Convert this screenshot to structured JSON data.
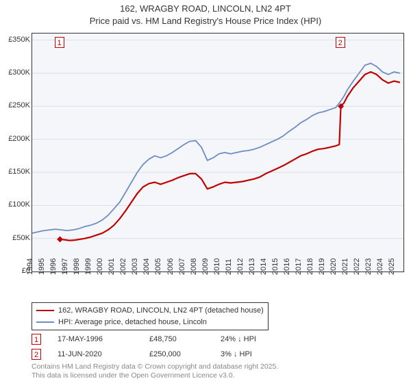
{
  "title_line1": "162, WRAGBY ROAD, LINCOLN, LN2 4PT",
  "title_line2": "Price paid vs. HM Land Registry's House Price Index (HPI)",
  "chart": {
    "type": "line",
    "background_color": "#f4f6fa",
    "grid_color": "#dcdfe6",
    "axis_color": "#333333",
    "xlim": [
      1994,
      2025.8
    ],
    "ylim": [
      0,
      360000
    ],
    "y_ticks": [
      0,
      50000,
      100000,
      150000,
      200000,
      250000,
      300000,
      350000
    ],
    "y_tick_labels": [
      "£0",
      "£50K",
      "£100K",
      "£150K",
      "£200K",
      "£250K",
      "£300K",
      "£350K"
    ],
    "x_ticks": [
      1994,
      1995,
      1996,
      1997,
      1998,
      1999,
      2000,
      2001,
      2002,
      2003,
      2004,
      2005,
      2006,
      2007,
      2008,
      2009,
      2010,
      2011,
      2012,
      2013,
      2014,
      2015,
      2016,
      2017,
      2018,
      2019,
      2020,
      2021,
      2022,
      2023,
      2024,
      2025
    ],
    "x_tick_labels": [
      "1994",
      "1995",
      "1996",
      "1997",
      "1998",
      "1999",
      "2000",
      "2001",
      "2002",
      "2003",
      "2004",
      "2005",
      "2006",
      "2007",
      "2008",
      "2009",
      "2010",
      "2011",
      "2012",
      "2013",
      "2014",
      "2015",
      "2016",
      "2017",
      "2018",
      "2019",
      "2020",
      "2021",
      "2022",
      "2023",
      "2024",
      "2025"
    ],
    "series": [
      {
        "name": "price_paid",
        "color": "#c00000",
        "line_width": 2.2,
        "points": [
          [
            1996.38,
            48750
          ],
          [
            1996.8,
            48000
          ],
          [
            1997.2,
            47000
          ],
          [
            1997.6,
            47500
          ],
          [
            1998.0,
            48500
          ],
          [
            1998.5,
            50000
          ],
          [
            1999.0,
            52000
          ],
          [
            1999.5,
            55000
          ],
          [
            2000.0,
            58000
          ],
          [
            2000.5,
            63000
          ],
          [
            2001.0,
            70000
          ],
          [
            2001.5,
            80000
          ],
          [
            2002.0,
            92000
          ],
          [
            2002.5,
            105000
          ],
          [
            2003.0,
            118000
          ],
          [
            2003.5,
            128000
          ],
          [
            2004.0,
            133000
          ],
          [
            2004.5,
            135000
          ],
          [
            2005.0,
            132000
          ],
          [
            2005.5,
            135000
          ],
          [
            2006.0,
            138000
          ],
          [
            2006.5,
            142000
          ],
          [
            2007.0,
            145000
          ],
          [
            2007.5,
            148000
          ],
          [
            2008.0,
            148000
          ],
          [
            2008.5,
            140000
          ],
          [
            2009.0,
            125000
          ],
          [
            2009.5,
            128000
          ],
          [
            2010.0,
            132000
          ],
          [
            2010.5,
            135000
          ],
          [
            2011.0,
            134000
          ],
          [
            2011.5,
            135000
          ],
          [
            2012.0,
            136000
          ],
          [
            2012.5,
            138000
          ],
          [
            2013.0,
            140000
          ],
          [
            2013.5,
            143000
          ],
          [
            2014.0,
            148000
          ],
          [
            2014.5,
            152000
          ],
          [
            2015.0,
            156000
          ],
          [
            2015.5,
            160000
          ],
          [
            2016.0,
            165000
          ],
          [
            2016.5,
            170000
          ],
          [
            2017.0,
            175000
          ],
          [
            2017.5,
            178000
          ],
          [
            2018.0,
            182000
          ],
          [
            2018.5,
            185000
          ],
          [
            2019.0,
            186000
          ],
          [
            2019.5,
            188000
          ],
          [
            2020.0,
            190000
          ],
          [
            2020.3,
            192000
          ],
          [
            2020.44,
            250000
          ],
          [
            2020.7,
            255000
          ],
          [
            2021.0,
            265000
          ],
          [
            2021.5,
            278000
          ],
          [
            2022.0,
            288000
          ],
          [
            2022.5,
            298000
          ],
          [
            2023.0,
            302000
          ],
          [
            2023.5,
            298000
          ],
          [
            2024.0,
            290000
          ],
          [
            2024.5,
            285000
          ],
          [
            2025.0,
            288000
          ],
          [
            2025.5,
            286000
          ]
        ]
      },
      {
        "name": "hpi",
        "color": "#6c8cc4",
        "line_width": 1.8,
        "points": [
          [
            1994.0,
            58000
          ],
          [
            1994.5,
            60000
          ],
          [
            1995.0,
            62000
          ],
          [
            1995.5,
            63000
          ],
          [
            1996.0,
            64000
          ],
          [
            1996.5,
            63000
          ],
          [
            1997.0,
            62000
          ],
          [
            1997.5,
            63000
          ],
          [
            1998.0,
            65000
          ],
          [
            1998.5,
            68000
          ],
          [
            1999.0,
            70000
          ],
          [
            1999.5,
            73000
          ],
          [
            2000.0,
            78000
          ],
          [
            2000.5,
            85000
          ],
          [
            2001.0,
            95000
          ],
          [
            2001.5,
            105000
          ],
          [
            2002.0,
            120000
          ],
          [
            2002.5,
            135000
          ],
          [
            2003.0,
            150000
          ],
          [
            2003.5,
            162000
          ],
          [
            2004.0,
            170000
          ],
          [
            2004.5,
            175000
          ],
          [
            2005.0,
            172000
          ],
          [
            2005.5,
            175000
          ],
          [
            2006.0,
            180000
          ],
          [
            2006.5,
            186000
          ],
          [
            2007.0,
            192000
          ],
          [
            2007.5,
            197000
          ],
          [
            2008.0,
            198000
          ],
          [
            2008.5,
            188000
          ],
          [
            2009.0,
            168000
          ],
          [
            2009.5,
            172000
          ],
          [
            2010.0,
            178000
          ],
          [
            2010.5,
            180000
          ],
          [
            2011.0,
            178000
          ],
          [
            2011.5,
            180000
          ],
          [
            2012.0,
            182000
          ],
          [
            2012.5,
            183000
          ],
          [
            2013.0,
            185000
          ],
          [
            2013.5,
            188000
          ],
          [
            2014.0,
            192000
          ],
          [
            2014.5,
            196000
          ],
          [
            2015.0,
            200000
          ],
          [
            2015.5,
            205000
          ],
          [
            2016.0,
            212000
          ],
          [
            2016.5,
            218000
          ],
          [
            2017.0,
            225000
          ],
          [
            2017.5,
            230000
          ],
          [
            2018.0,
            236000
          ],
          [
            2018.5,
            240000
          ],
          [
            2019.0,
            242000
          ],
          [
            2019.5,
            245000
          ],
          [
            2020.0,
            248000
          ],
          [
            2020.44,
            258000
          ],
          [
            2020.7,
            265000
          ],
          [
            2021.0,
            275000
          ],
          [
            2021.5,
            288000
          ],
          [
            2022.0,
            300000
          ],
          [
            2022.5,
            312000
          ],
          [
            2023.0,
            315000
          ],
          [
            2023.5,
            310000
          ],
          [
            2024.0,
            302000
          ],
          [
            2024.5,
            298000
          ],
          [
            2025.0,
            302000
          ],
          [
            2025.5,
            300000
          ]
        ]
      }
    ],
    "sale_markers": [
      {
        "badge": "1",
        "x": 1996.38,
        "y": 48750
      },
      {
        "badge": "2",
        "x": 2020.44,
        "y": 250000
      }
    ]
  },
  "legend": {
    "items": [
      {
        "color": "#c00000",
        "label": "162, WRAGBY ROAD, LINCOLN, LN2 4PT (detached house)"
      },
      {
        "color": "#6c8cc4",
        "label": "HPI: Average price, detached house, Lincoln"
      }
    ]
  },
  "sales_table": {
    "rows": [
      {
        "badge": "1",
        "date": "17-MAY-1996",
        "price": "£48,750",
        "delta": "24% ↓ HPI"
      },
      {
        "badge": "2",
        "date": "11-JUN-2020",
        "price": "£250,000",
        "delta": "3% ↓ HPI"
      }
    ]
  },
  "footer_line1": "Contains HM Land Registry data © Crown copyright and database right 2025.",
  "footer_line2": "This data is licensed under the Open Government Licence v3.0."
}
